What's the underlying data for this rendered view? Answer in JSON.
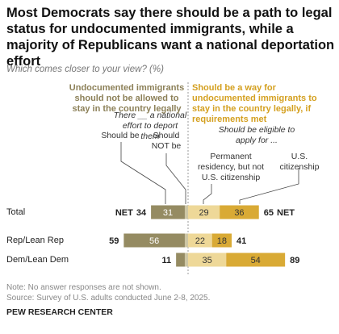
{
  "chart_data": {
    "type": "diverging_bar",
    "title": "Most Democrats say there should be a path to legal status for undocumented immigrants, while a majority of Republicans want a national deportation effort",
    "subtitle": "Which comes closer to your view? (%)",
    "left_header": "Undocumented immigrants should not be allowed to stay in the country legally",
    "right_header": "Should be a way for undocumented immigrants to stay in the country legally, if requirements met",
    "left_question": "There __ a national effort to deport them",
    "right_question": "Should be eligible to apply for ...",
    "categories": [
      "Total",
      "Rep/Lean Rep",
      "Dem/Lean Dem"
    ],
    "series_left": [
      {
        "name": "Should be",
        "color": "#958b62",
        "values": [
          31,
          56,
          8
        ]
      },
      {
        "name": "Should NOT be",
        "color": "#cdc6a4",
        "values": [
          3,
          3,
          3
        ]
      }
    ],
    "series_right": [
      {
        "name": "Permanent residency, but not U.S. citizenship",
        "color": "#eed898",
        "values": [
          29,
          22,
          35
        ]
      },
      {
        "name": "U.S. citizenship",
        "color": "#d9aa35",
        "values": [
          36,
          18,
          54
        ]
      }
    ],
    "net_label": "NET",
    "net_left": [
      34,
      59,
      11
    ],
    "net_right": [
      65,
      41,
      89
    ],
    "notes": [
      "Note: No answer responses are not shown.",
      "Source: Survey of U.S. adults conducted June 2-8, 2025."
    ],
    "source": "PEW RESEARCH CENTER"
  }
}
